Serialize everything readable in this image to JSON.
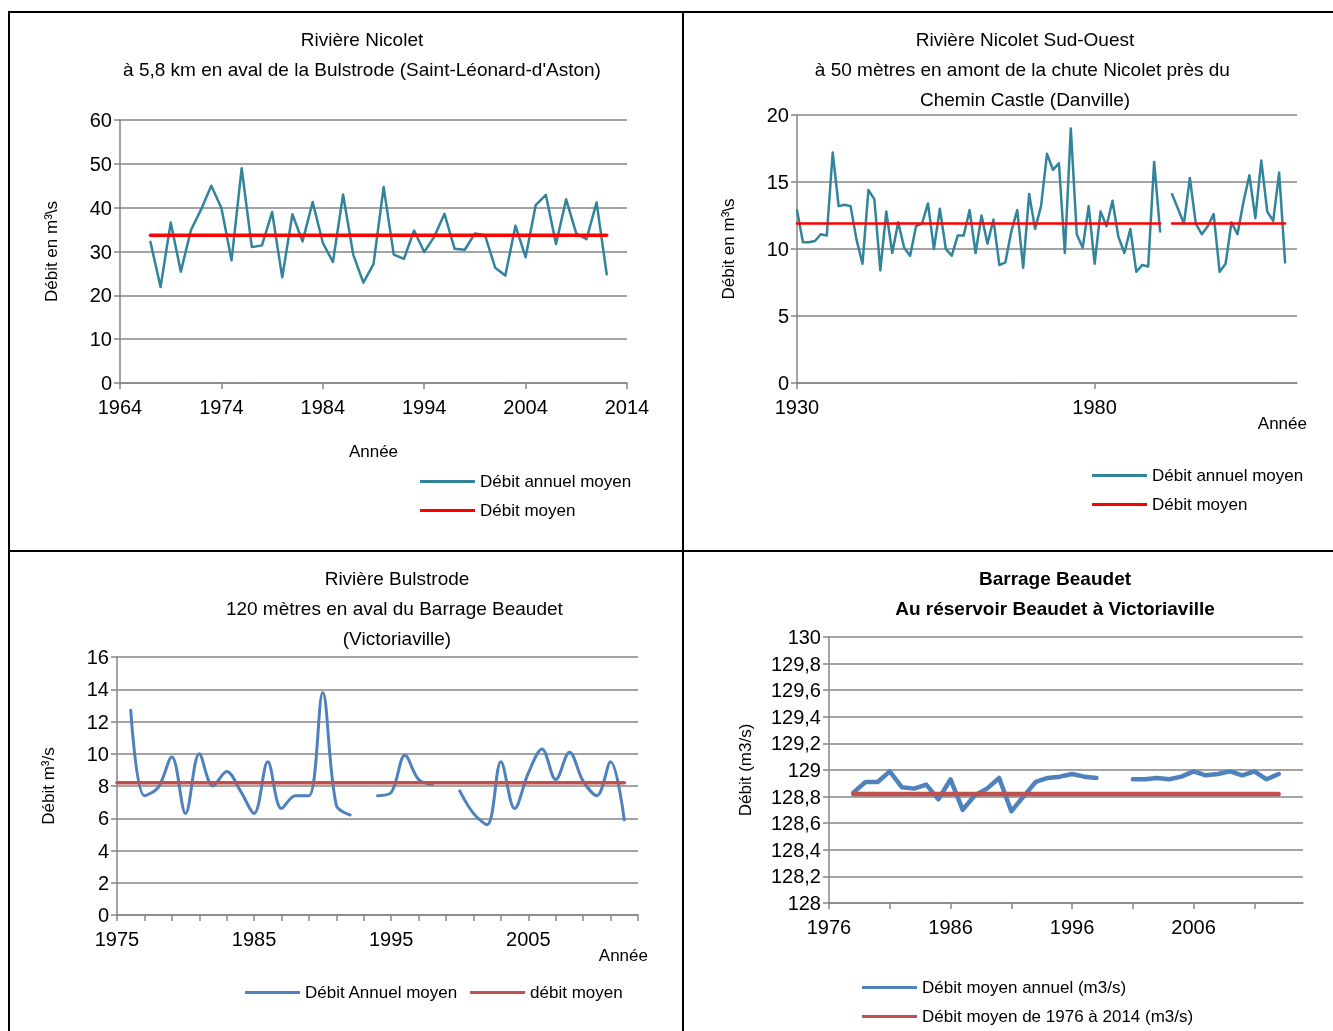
{
  "chart_data": [
    {
      "type": "line",
      "title": "Rivière Nicolet",
      "subtitle": "à 5,8 km en aval de la Bulstrode (Saint-Léonard-d'Aston)",
      "xlabel": "Année",
      "ylabel": "Débit en m³\\s",
      "xlim": [
        1964,
        2014
      ],
      "xticks": [
        1964,
        1974,
        1984,
        1994,
        2004,
        2014
      ],
      "ylim": [
        0,
        60
      ],
      "yticks": [
        0,
        10,
        20,
        30,
        40,
        50,
        60
      ],
      "grid": "y",
      "legend": "bottom right",
      "marker": "none",
      "line_style": "solid",
      "series": [
        {
          "name": "Débit annuel moyen",
          "color": "#31849b",
          "x": [
            1967,
            1968,
            1969,
            1970,
            1971,
            1972,
            1973,
            1974,
            1975,
            1976,
            1977,
            1978,
            1979,
            1980,
            1981,
            1982,
            1983,
            1984,
            1985,
            1986,
            1987,
            1988,
            1989,
            1990,
            1991,
            1992,
            1993,
            1994,
            1995,
            1996,
            1997,
            1998,
            1999,
            2000,
            2001,
            2002,
            2003,
            2004,
            2005,
            2006,
            2007,
            2008,
            2009,
            2010,
            2011,
            2012
          ],
          "values": [
            32.2,
            21.9,
            36.6,
            25.4,
            34.9,
            39.6,
            45.0,
            39.9,
            28.0,
            49.0,
            31.0,
            31.4,
            39.0,
            24.1,
            38.5,
            32.3,
            41.3,
            32.0,
            27.6,
            43.0,
            29.3,
            22.9,
            27.1,
            44.7,
            29.3,
            28.3,
            34.8,
            29.9,
            33.4,
            38.6,
            30.6,
            30.4,
            34.1,
            33.7,
            26.3,
            24.5,
            35.9,
            28.7,
            40.6,
            42.9,
            31.7,
            41.9,
            34.1,
            32.8,
            41.2,
            24.8
          ]
        },
        {
          "name": "Débit moyen",
          "color": "#ff0000",
          "x": [
            1967,
            2012
          ],
          "values": [
            33.7,
            33.7
          ]
        }
      ]
    },
    {
      "type": "line",
      "title": "Rivière Nicolet Sud-Ouest",
      "subtitle": "à 50 mètres en amont de la chute Nicolet près du Chemin Castle (Danville)",
      "xlabel": "Année",
      "ylabel": "Débit en m³\\s",
      "xlim": [
        1930,
        2014
      ],
      "xticks": [
        1930,
        1980
      ],
      "ylim": [
        0,
        20
      ],
      "yticks": [
        0,
        5,
        10,
        15,
        20
      ],
      "grid": "y",
      "legend": "bottom right",
      "marker": "none",
      "line_style": "solid",
      "series": [
        {
          "name": "Débit annuel moyen",
          "color": "#31849b",
          "x": [
            1930,
            1931,
            1932,
            1933,
            1934,
            1935,
            1936,
            1937,
            1938,
            1939,
            1940,
            1941,
            1942,
            1943,
            1944,
            1945,
            1946,
            1947,
            1948,
            1949,
            1950,
            1951,
            1952,
            1953,
            1954,
            1955,
            1956,
            1957,
            1958,
            1959,
            1960,
            1961,
            1962,
            1963,
            1964,
            1965,
            1966,
            1967,
            1968,
            1969,
            1970,
            1971,
            1972,
            1973,
            1974,
            1975,
            1976,
            1977,
            1978,
            1979,
            1980,
            1981,
            1982,
            1983,
            1984,
            1985,
            1986,
            1987,
            1988,
            1989,
            1990,
            1991,
            1992,
            1993,
            1994,
            1995,
            1996,
            1997,
            1998,
            1999,
            2000,
            2001,
            2002,
            2003,
            2004,
            2005,
            2006,
            2007,
            2008,
            2009,
            2010,
            2011,
            2012
          ],
          "values": [
            12.9,
            10.5,
            10.5,
            10.6,
            11.1,
            11.0,
            17.2,
            13.2,
            13.3,
            13.2,
            10.7,
            8.9,
            14.4,
            13.7,
            8.4,
            12.8,
            9.7,
            12.0,
            10.1,
            9.5,
            11.7,
            11.9,
            13.4,
            10.0,
            13.0,
            10.0,
            9.5,
            11.0,
            11.0,
            12.9,
            9.7,
            12.5,
            10.4,
            12.2,
            8.8,
            9.0,
            11.3,
            12.9,
            8.6,
            14.1,
            11.5,
            13.2,
            17.1,
            15.9,
            16.4,
            9.7,
            19.0,
            11.1,
            10.1,
            13.2,
            8.9,
            12.8,
            11.7,
            13.6,
            10.9,
            9.7,
            11.5,
            8.3,
            8.8,
            8.7,
            16.5,
            11.3,
            null,
            14.1,
            13.0,
            11.9,
            15.3,
            11.9,
            11.1,
            11.7,
            12.6,
            8.3,
            8.9,
            12.0,
            11.1,
            13.5,
            15.5,
            12.3,
            16.6,
            12.8,
            12.1,
            15.7,
            9.0
          ]
        },
        {
          "name": "Débit moyen",
          "color": "#ff0000",
          "x": [
            1930,
            1991,
            1992,
            1993,
            2012
          ],
          "values": [
            11.9,
            11.9,
            null,
            11.9,
            11.9
          ]
        }
      ]
    },
    {
      "type": "line",
      "title": "Rivière Bulstrode",
      "subtitle": "120 mètres en aval du Barrage Beaudet (Victoriaville)",
      "xlabel": "Année",
      "ylabel": "Débit m³/s",
      "xlim": [
        1975,
        2013
      ],
      "xticks": [
        1975,
        {
          "value": 1977,
          "label": null
        },
        {
          "value": 1979,
          "label": null
        },
        {
          "value": 1981,
          "label": null
        },
        {
          "value": 1983,
          "label": null
        },
        1985,
        {
          "value": 1987,
          "label": null
        },
        {
          "value": 1989,
          "label": null
        },
        {
          "value": 1991,
          "label": null
        },
        {
          "value": 1993,
          "label": null
        },
        1995,
        {
          "value": 1997,
          "label": null
        },
        {
          "value": 1999,
          "label": null
        },
        {
          "value": 2001,
          "label": null
        },
        {
          "value": 2003,
          "label": null
        },
        2005,
        {
          "value": 2007,
          "label": null
        },
        {
          "value": 2009,
          "label": null
        },
        {
          "value": 2011,
          "label": null
        },
        {
          "value": 2013,
          "label": null
        }
      ],
      "ylim": [
        0,
        16
      ],
      "yticks": [
        0,
        2,
        4,
        6,
        8,
        10,
        12,
        14,
        16
      ],
      "grid": "y",
      "legend": "bottom",
      "marker": "none",
      "line_style": "solid",
      "series": [
        {
          "name": "Débit Annuel moyen",
          "color": "#4f81bd",
          "x": [
            1976,
            1977,
            1978,
            1979,
            1980,
            1981,
            1982,
            1983,
            1984,
            1985,
            1986,
            1987,
            1988,
            1989,
            1990,
            1991,
            1992,
            1993,
            1994,
            1995,
            1996,
            1997,
            1998,
            1999,
            2000,
            2001,
            2002,
            2003,
            2004,
            2005,
            2006,
            2007,
            2008,
            2009,
            2010,
            2011,
            2012
          ],
          "values": [
            12.7,
            7.4,
            7.9,
            9.8,
            6.3,
            10.0,
            8.0,
            8.9,
            7.7,
            6.3,
            9.5,
            6.6,
            7.4,
            7.4,
            13.8,
            6.8,
            6.2,
            null,
            7.4,
            7.6,
            9.9,
            8.4,
            8.1,
            null,
            7.7,
            6.3,
            5.6,
            9.5,
            6.6,
            8.8,
            10.3,
            8.4,
            10.1,
            8.3,
            7.4,
            9.5,
            5.9
          ]
        },
        {
          "name": "débit moyen",
          "color": "#c0504d",
          "x": [
            1975,
            2012
          ],
          "values": [
            8.2,
            8.2
          ]
        }
      ]
    },
    {
      "type": "line",
      "title": "Barrage Beaudet",
      "subtitle": "Au réservoir Beaudet à Victoriaville",
      "ylabel": "Débit (m3/s)",
      "xlim": [
        1976,
        2015
      ],
      "xticks": [
        1976,
        {
          "value": 1981,
          "label": null
        },
        1986,
        {
          "value": 1991,
          "label": null
        },
        1996,
        {
          "value": 2001,
          "label": null
        },
        2006,
        {
          "value": 2011,
          "label": null
        }
      ],
      "ylim": [
        128,
        130
      ],
      "yticks": [
        128,
        {
          "value": 128.2,
          "label": "128,2"
        },
        {
          "value": 128.4,
          "label": "128,4"
        },
        {
          "value": 128.6,
          "label": "128,6"
        },
        {
          "value": 128.8,
          "label": "128,8"
        },
        129,
        {
          "value": 129.2,
          "label": "129,2"
        },
        {
          "value": 129.4,
          "label": "129,4"
        },
        {
          "value": 129.6,
          "label": "129,6"
        },
        {
          "value": 129.8,
          "label": "129,8"
        },
        130
      ],
      "grid": "y",
      "legend": "bottom",
      "marker": "none",
      "line_style": "solid",
      "series": [
        {
          "name": "Débit moyen annuel (m3/s)",
          "color": "#4f81bd",
          "x": [
            1978,
            1979,
            1980,
            1981,
            1982,
            1983,
            1984,
            1985,
            1986,
            1987,
            1988,
            1989,
            1990,
            1991,
            1992,
            1993,
            1994,
            1995,
            1996,
            1997,
            1998,
            1999,
            2000,
            2001,
            2002,
            2003,
            2004,
            2005,
            2006,
            2007,
            2008,
            2009,
            2010,
            2011,
            2012,
            2013
          ],
          "values": [
            128.83,
            128.91,
            128.91,
            128.99,
            128.87,
            128.86,
            128.89,
            128.78,
            128.93,
            128.7,
            128.81,
            128.86,
            128.94,
            128.69,
            128.8,
            128.91,
            128.94,
            128.95,
            128.97,
            128.95,
            128.94,
            null,
            null,
            128.93,
            128.93,
            128.94,
            128.93,
            128.95,
            128.99,
            128.96,
            128.97,
            128.99,
            128.96,
            128.99,
            128.93,
            128.97
          ]
        },
        {
          "name": "Débit moyen de 1976 à 2014 (m3/s)",
          "color": "#c0504d",
          "x": [
            1978,
            2013
          ],
          "values": [
            128.82,
            128.82
          ]
        }
      ]
    }
  ]
}
